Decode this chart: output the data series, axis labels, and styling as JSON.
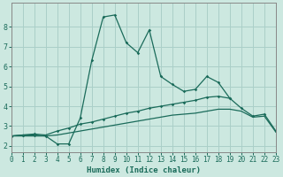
{
  "xlabel": "Humidex (Indice chaleur)",
  "bg_color": "#cce8e0",
  "grid_color": "#aacfc8",
  "line_color": "#1a6b5a",
  "x": [
    0,
    1,
    2,
    3,
    4,
    5,
    6,
    7,
    8,
    9,
    10,
    11,
    12,
    13,
    14,
    15,
    16,
    17,
    18,
    19,
    20,
    21,
    22,
    23
  ],
  "line1": [
    2.5,
    2.55,
    2.55,
    2.5,
    2.1,
    2.1,
    3.4,
    6.3,
    8.5,
    8.6,
    7.2,
    6.7,
    7.85,
    5.5,
    5.1,
    4.75,
    4.85,
    5.5,
    5.2,
    4.4,
    null,
    null,
    null,
    null
  ],
  "line2": [
    2.5,
    2.55,
    2.6,
    2.55,
    2.75,
    2.9,
    3.1,
    3.2,
    3.35,
    3.5,
    3.65,
    3.75,
    3.9,
    4.0,
    4.1,
    4.2,
    4.3,
    4.45,
    4.5,
    4.4,
    3.9,
    3.5,
    3.6,
    2.75
  ],
  "line3": [
    2.5,
    2.5,
    2.5,
    2.5,
    2.55,
    2.65,
    2.75,
    2.85,
    2.95,
    3.05,
    3.15,
    3.25,
    3.35,
    3.45,
    3.55,
    3.6,
    3.65,
    3.75,
    3.85,
    3.85,
    3.75,
    3.45,
    3.5,
    2.7
  ],
  "xlim": [
    0,
    23
  ],
  "ylim": [
    1.7,
    9.2
  ],
  "yticks": [
    2,
    3,
    4,
    5,
    6,
    7,
    8
  ],
  "xticks": [
    0,
    1,
    2,
    3,
    4,
    5,
    6,
    7,
    8,
    9,
    10,
    11,
    12,
    13,
    14,
    15,
    16,
    17,
    18,
    19,
    20,
    21,
    22,
    23
  ]
}
